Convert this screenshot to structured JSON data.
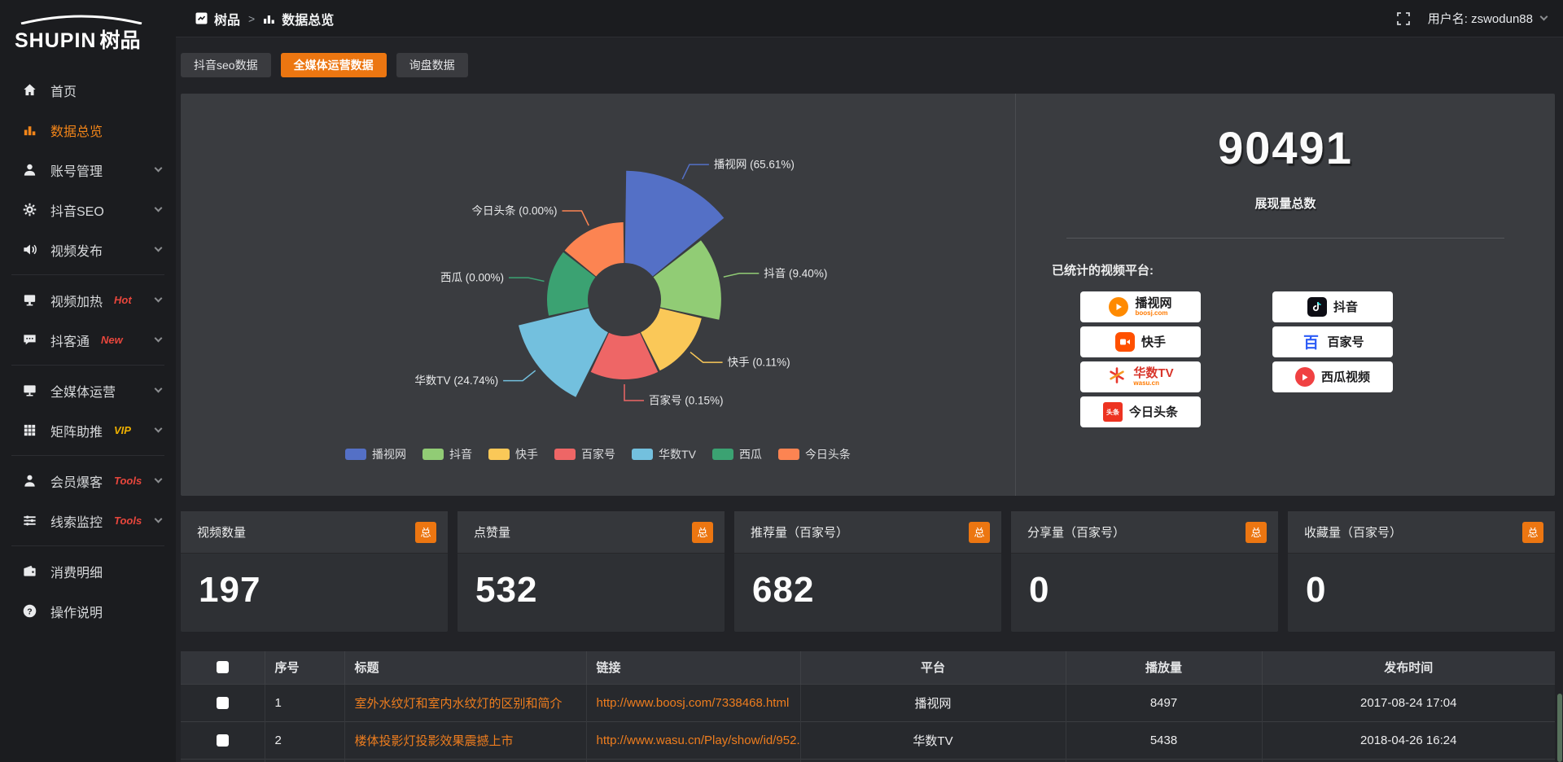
{
  "brand": {
    "logo_text": "SHUPIN",
    "logo_suffix": "树品"
  },
  "topbar": {
    "breadcrumb_root": "树品",
    "breadcrumb_sep": ">",
    "breadcrumb_current": "数据总览",
    "username": "用户名: zswodun88"
  },
  "sidebar": {
    "items": [
      {
        "id": "home",
        "icon": "home-icon",
        "label": "首页"
      },
      {
        "id": "data-overview",
        "icon": "bar-chart-icon",
        "label": "数据总览",
        "active": true
      },
      {
        "id": "account-manage",
        "icon": "user-icon",
        "label": "账号管理",
        "chevron": true
      },
      {
        "id": "douyin-seo",
        "icon": "gear-icon",
        "label": "抖音SEO",
        "chevron": true
      },
      {
        "id": "video-publish",
        "icon": "speaker-icon",
        "label": "视频发布",
        "chevron": true
      },
      {
        "divider": true
      },
      {
        "id": "video-heat",
        "icon": "display-icon",
        "label": "视频加热",
        "tag": "Hot",
        "tag_color": "#e8463c",
        "chevron": true
      },
      {
        "id": "douketong",
        "icon": "chat-icon",
        "label": "抖客通",
        "tag": "New",
        "tag_color": "#e8463c",
        "chevron": true
      },
      {
        "divider": true
      },
      {
        "id": "media-operation",
        "icon": "monitor-icon",
        "label": "全媒体运营",
        "chevron": true
      },
      {
        "id": "matrix-boost",
        "icon": "grid-icon",
        "label": "矩阵助推",
        "tag": "VIP",
        "tag_color": "#eeb000",
        "chevron": true
      },
      {
        "divider": true
      },
      {
        "id": "member-baoke",
        "icon": "person-icon",
        "label": "会员爆客",
        "tag": "Tools",
        "tag_color": "#e8463c",
        "chevron": true
      },
      {
        "id": "clue-monitor",
        "icon": "sliders-icon",
        "label": "线索监控",
        "tag": "Tools",
        "tag_color": "#e8463c",
        "chevron": true
      },
      {
        "divider": true
      },
      {
        "id": "consume-detail",
        "icon": "wallet-icon",
        "label": "消费明细"
      },
      {
        "id": "help",
        "icon": "question-icon",
        "label": "操作说明"
      }
    ]
  },
  "tabs": [
    {
      "label": "抖音seo数据",
      "active": false
    },
    {
      "label": "全媒体运营数据",
      "active": true
    },
    {
      "label": "询盘数据",
      "active": false
    }
  ],
  "chart_data": {
    "type": "pie",
    "variant": "nightingale-rose-donut",
    "labels": [
      "播视网",
      "抖音",
      "快手",
      "百家号",
      "华数TV",
      "西瓜",
      "今日头条"
    ],
    "values_pct": [
      65.61,
      9.4,
      0.11,
      0.15,
      24.74,
      0.0,
      0.0
    ],
    "pct_display": [
      "65.61",
      "9.40",
      "0.11",
      "0.15",
      "24.74",
      "0.00",
      "0.00"
    ],
    "colors": [
      "#5470c6",
      "#91cc75",
      "#fac858",
      "#ee6666",
      "#73c0de",
      "#3ba272",
      "#fc8452"
    ],
    "label_format": "{name} ({pct}%)",
    "legend_position": "bottom",
    "legend": [
      "播视网",
      "抖音",
      "快手",
      "百家号",
      "华数TV",
      "西瓜",
      "今日头条"
    ]
  },
  "summary": {
    "total_value": "90491",
    "total_label": "展现量总数",
    "platforms_title": "已统计的视频平台:",
    "platform_columns": [
      [
        {
          "name": "播视网",
          "sub": "boosj.com",
          "logo": "boosj-logo"
        },
        {
          "name": "快手",
          "logo": "kuaishou-logo"
        },
        {
          "name": "华数TV",
          "sub": "wasu.cn",
          "logo": "wasu-logo",
          "style": "wasu"
        },
        {
          "name": "今日头条",
          "logo": "toutiao-logo"
        }
      ],
      [
        {
          "name": "抖音",
          "logo": "douyin-logo"
        },
        {
          "name": "百家号",
          "logo": "baijiahao-logo"
        },
        {
          "name": "西瓜视频",
          "logo": "xigua-logo"
        }
      ]
    ]
  },
  "stat_cards": [
    {
      "title": "视频数量",
      "badge": "总",
      "value": "197"
    },
    {
      "title": "点赞量",
      "badge": "总",
      "value": "532"
    },
    {
      "title": "推荐量（百家号）",
      "badge": "总",
      "value": "682"
    },
    {
      "title": "分享量（百家号）",
      "badge": "总",
      "value": "0"
    },
    {
      "title": "收藏量（百家号）",
      "badge": "总",
      "value": "0"
    }
  ],
  "table": {
    "headers": [
      "序号",
      "标题",
      "链接",
      "平台",
      "播放量",
      "发布时间"
    ],
    "rows": [
      {
        "index": "1",
        "title": "室外水纹灯和室内水纹灯的区别和简介",
        "link": "http://www.boosj.com/7338468.html",
        "platform": "播视网",
        "plays": "8497",
        "publish_time": "2017-08-24 17:04"
      },
      {
        "index": "2",
        "title": "楼体投影灯投影效果震撼上市",
        "link": "http://www.wasu.cn/Play/show/id/952...",
        "platform": "华数TV",
        "plays": "5438",
        "publish_time": "2018-04-26 16:24"
      }
    ],
    "partial_row": true
  }
}
